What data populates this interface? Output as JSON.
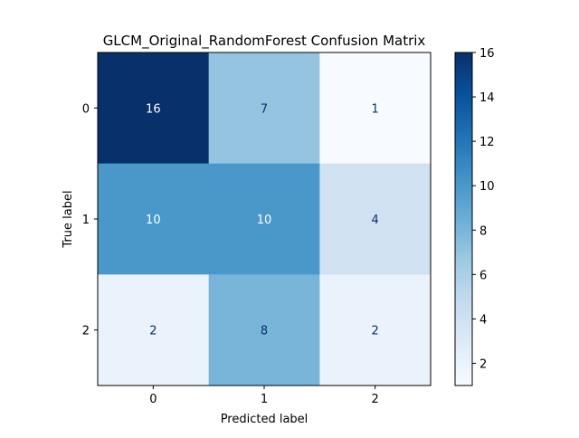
{
  "chart_data": {
    "type": "heatmap",
    "title": "GLCM_Original_RandomForest Confusion Matrix",
    "xlabel": "Predicted label",
    "ylabel": "True label",
    "x_categories": [
      "0",
      "1",
      "2"
    ],
    "y_categories": [
      "0",
      "1",
      "2"
    ],
    "matrix": [
      [
        16,
        7,
        1
      ],
      [
        10,
        10,
        4
      ],
      [
        2,
        8,
        2
      ]
    ],
    "colormap": "Blues",
    "vmin": 1,
    "vmax": 16,
    "colorbar_ticks": [
      2,
      4,
      6,
      8,
      10,
      12,
      14,
      16
    ],
    "colorbar": true,
    "grid": false
  }
}
